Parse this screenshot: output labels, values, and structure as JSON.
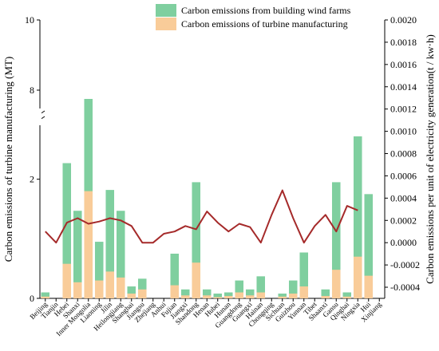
{
  "chart_data": {
    "type": "bar",
    "categories": [
      "Beijing",
      "Tianjin",
      "Hebei",
      "Shanxi",
      "Inner Mongolia",
      "Liaoning",
      "Jilin",
      "Heilongjiang",
      "Shanghai",
      "Jiangsu",
      "Zhejiang",
      "Anhui",
      "Fujian",
      "Jiangxi",
      "Shandong",
      "Henan",
      "Hubei",
      "Hunan",
      "Guangdong",
      "Guangxi",
      "Hainan",
      "Chongqing",
      "Sichuan",
      "Guizhou",
      "Yunnan",
      "Tibet",
      "Shaanxi",
      "Gansu",
      "Qinghai",
      "Ningxia",
      "Hui",
      "Xinjiang"
    ],
    "series": [
      {
        "name": "Carbon emissions from building wind farms",
        "color": "#7fcf9f",
        "axis": "left",
        "values": [
          0.1,
          0.0,
          2.27,
          1.47,
          7.75,
          0.95,
          1.82,
          1.47,
          0.2,
          0.33,
          0.0,
          0.0,
          0.75,
          0.15,
          1.95,
          0.15,
          0.08,
          0.1,
          0.3,
          0.15,
          0.37,
          0.0,
          0.08,
          0.3,
          0.77,
          0.0,
          0.15,
          1.95,
          0.1,
          2.72,
          1.75,
          0.0
        ]
      },
      {
        "name": "Carbon emissions of turbine manufacturing",
        "color": "#f9cc99",
        "axis": "left",
        "values": [
          0.03,
          0.0,
          0.58,
          0.27,
          1.8,
          0.3,
          0.45,
          0.35,
          0.08,
          0.15,
          0.0,
          0.0,
          0.22,
          0.05,
          0.6,
          0.05,
          0.02,
          0.04,
          0.1,
          0.05,
          0.1,
          0.0,
          0.03,
          0.08,
          0.2,
          0.0,
          0.04,
          0.48,
          0.03,
          0.7,
          0.38,
          0.0
        ]
      },
      {
        "name": "Carbon emissions per unit of electricity generation",
        "color": "#a52a2a",
        "axis": "right",
        "type": "line",
        "values": [
          0.0001,
          0.0,
          0.00018,
          0.00022,
          0.00017,
          0.00019,
          0.00022,
          0.0002,
          0.00015,
          0.0,
          0.0,
          8e-05,
          0.0001,
          0.00015,
          0.00012,
          0.00028,
          0.00018,
          0.0001,
          0.00017,
          0.00014,
          0.0,
          0.00025,
          0.00047,
          0.00022,
          0.0,
          0.00015,
          0.00025,
          0.0001,
          0.00033,
          0.00029,
          null,
          null
        ]
      }
    ],
    "ylabel": "Carbon emissions of turbine manufacturing (MT)",
    "y2label": "Carbon emissions per unit of electricity generation(t / kw·h)",
    "ylim": [
      0,
      10
    ],
    "y_axis_break": [
      3,
      7.5
    ],
    "y_ticks": [
      0,
      2,
      8,
      10
    ],
    "y2lim": [
      -0.0005,
      0.002
    ],
    "y2_ticks": [
      "-0.0004",
      "-0.0002",
      "0.0000",
      "0.0002",
      "0.0004",
      "0.0006",
      "0.0008",
      "0.0010",
      "0.0012",
      "0.0014",
      "0.0016",
      "0.0018",
      "0.0020"
    ],
    "legend_position": "top-right",
    "grid": false
  }
}
